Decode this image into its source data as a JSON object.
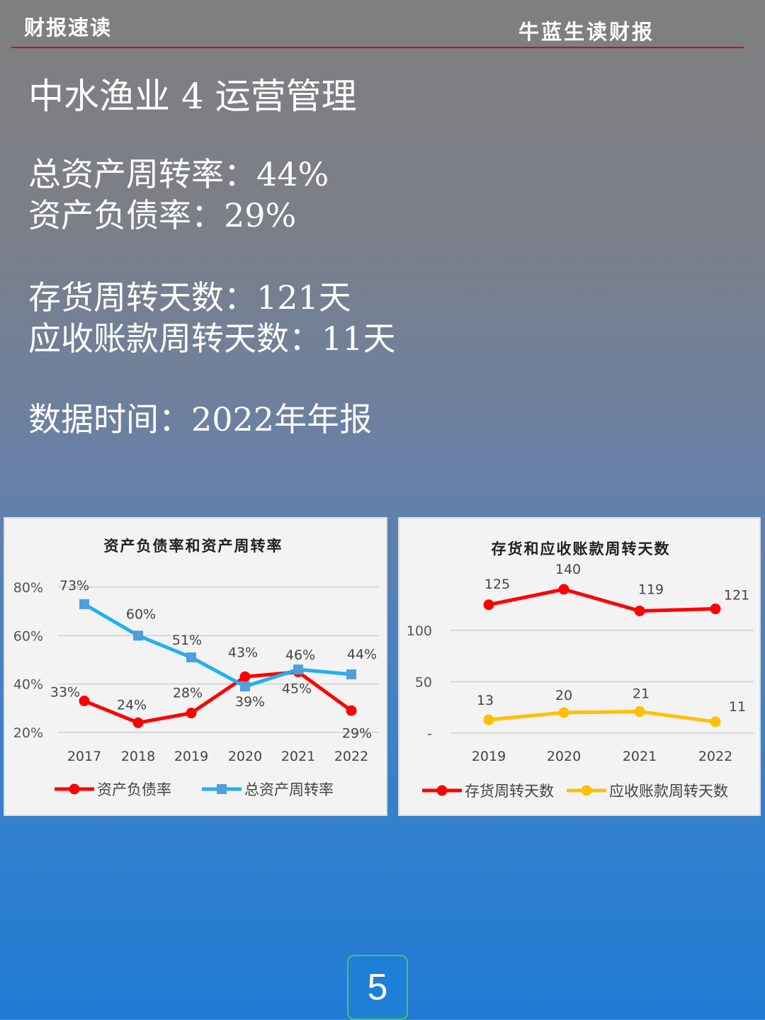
{
  "header": {
    "left": "财报速读",
    "right": "牛蓝生读财报"
  },
  "title": "中水渔业 4 运营管理",
  "metrics": {
    "asset_turnover": "总资产周转率：44%",
    "debt_ratio": "资产负债率：29%",
    "inventory_days": "存货周转天数：121天",
    "receivable_days": "应收账款周转天数：11天",
    "data_time": "数据时间：2022年年报"
  },
  "page_number": "5",
  "colors": {
    "red": "#ff0000",
    "blue": "#1fb0f2",
    "yellow": "#ffc000",
    "header_line": "#d9001b"
  },
  "chart_data": [
    {
      "type": "line",
      "title": "资产负债率和资产周转率",
      "x": [
        "2017",
        "2018",
        "2019",
        "2020",
        "2021",
        "2022"
      ],
      "y_ticks": [
        "80%",
        "60%",
        "40%",
        "20%"
      ],
      "ylim": [
        20,
        80
      ],
      "grid": true,
      "legend": "bottom",
      "series": [
        {
          "name": "资产负债率",
          "values": [
            33,
            24,
            28,
            43,
            45,
            29
          ],
          "labels": [
            "33%",
            "24%",
            "28%",
            "43%",
            "45%",
            "29%"
          ],
          "color": "#ff0000",
          "marker": "circle"
        },
        {
          "name": "总资产周转率",
          "values": [
            73,
            60,
            51,
            39,
            46,
            44
          ],
          "labels": [
            "73%",
            "60%",
            "51%",
            "39%",
            "46%",
            "44%"
          ],
          "color": "#1fb0f2",
          "marker": "square"
        }
      ]
    },
    {
      "type": "line",
      "title": "存货和应收账款周转天数",
      "x": [
        "2019",
        "2020",
        "2021",
        "2022"
      ],
      "y_ticks": [
        "100",
        "50",
        "-"
      ],
      "ylim": [
        0,
        100
      ],
      "grid": true,
      "legend": "bottom",
      "series": [
        {
          "name": "存货周转天数",
          "values": [
            125,
            140,
            119,
            121
          ],
          "labels": [
            "125",
            "140",
            "119",
            "121"
          ],
          "color": "#ff0000",
          "marker": "circle"
        },
        {
          "name": "应收账款周转天数",
          "values": [
            13,
            20,
            21,
            11
          ],
          "labels": [
            "13",
            "20",
            "21",
            "11"
          ],
          "color": "#ffc000",
          "marker": "circle"
        }
      ]
    }
  ]
}
